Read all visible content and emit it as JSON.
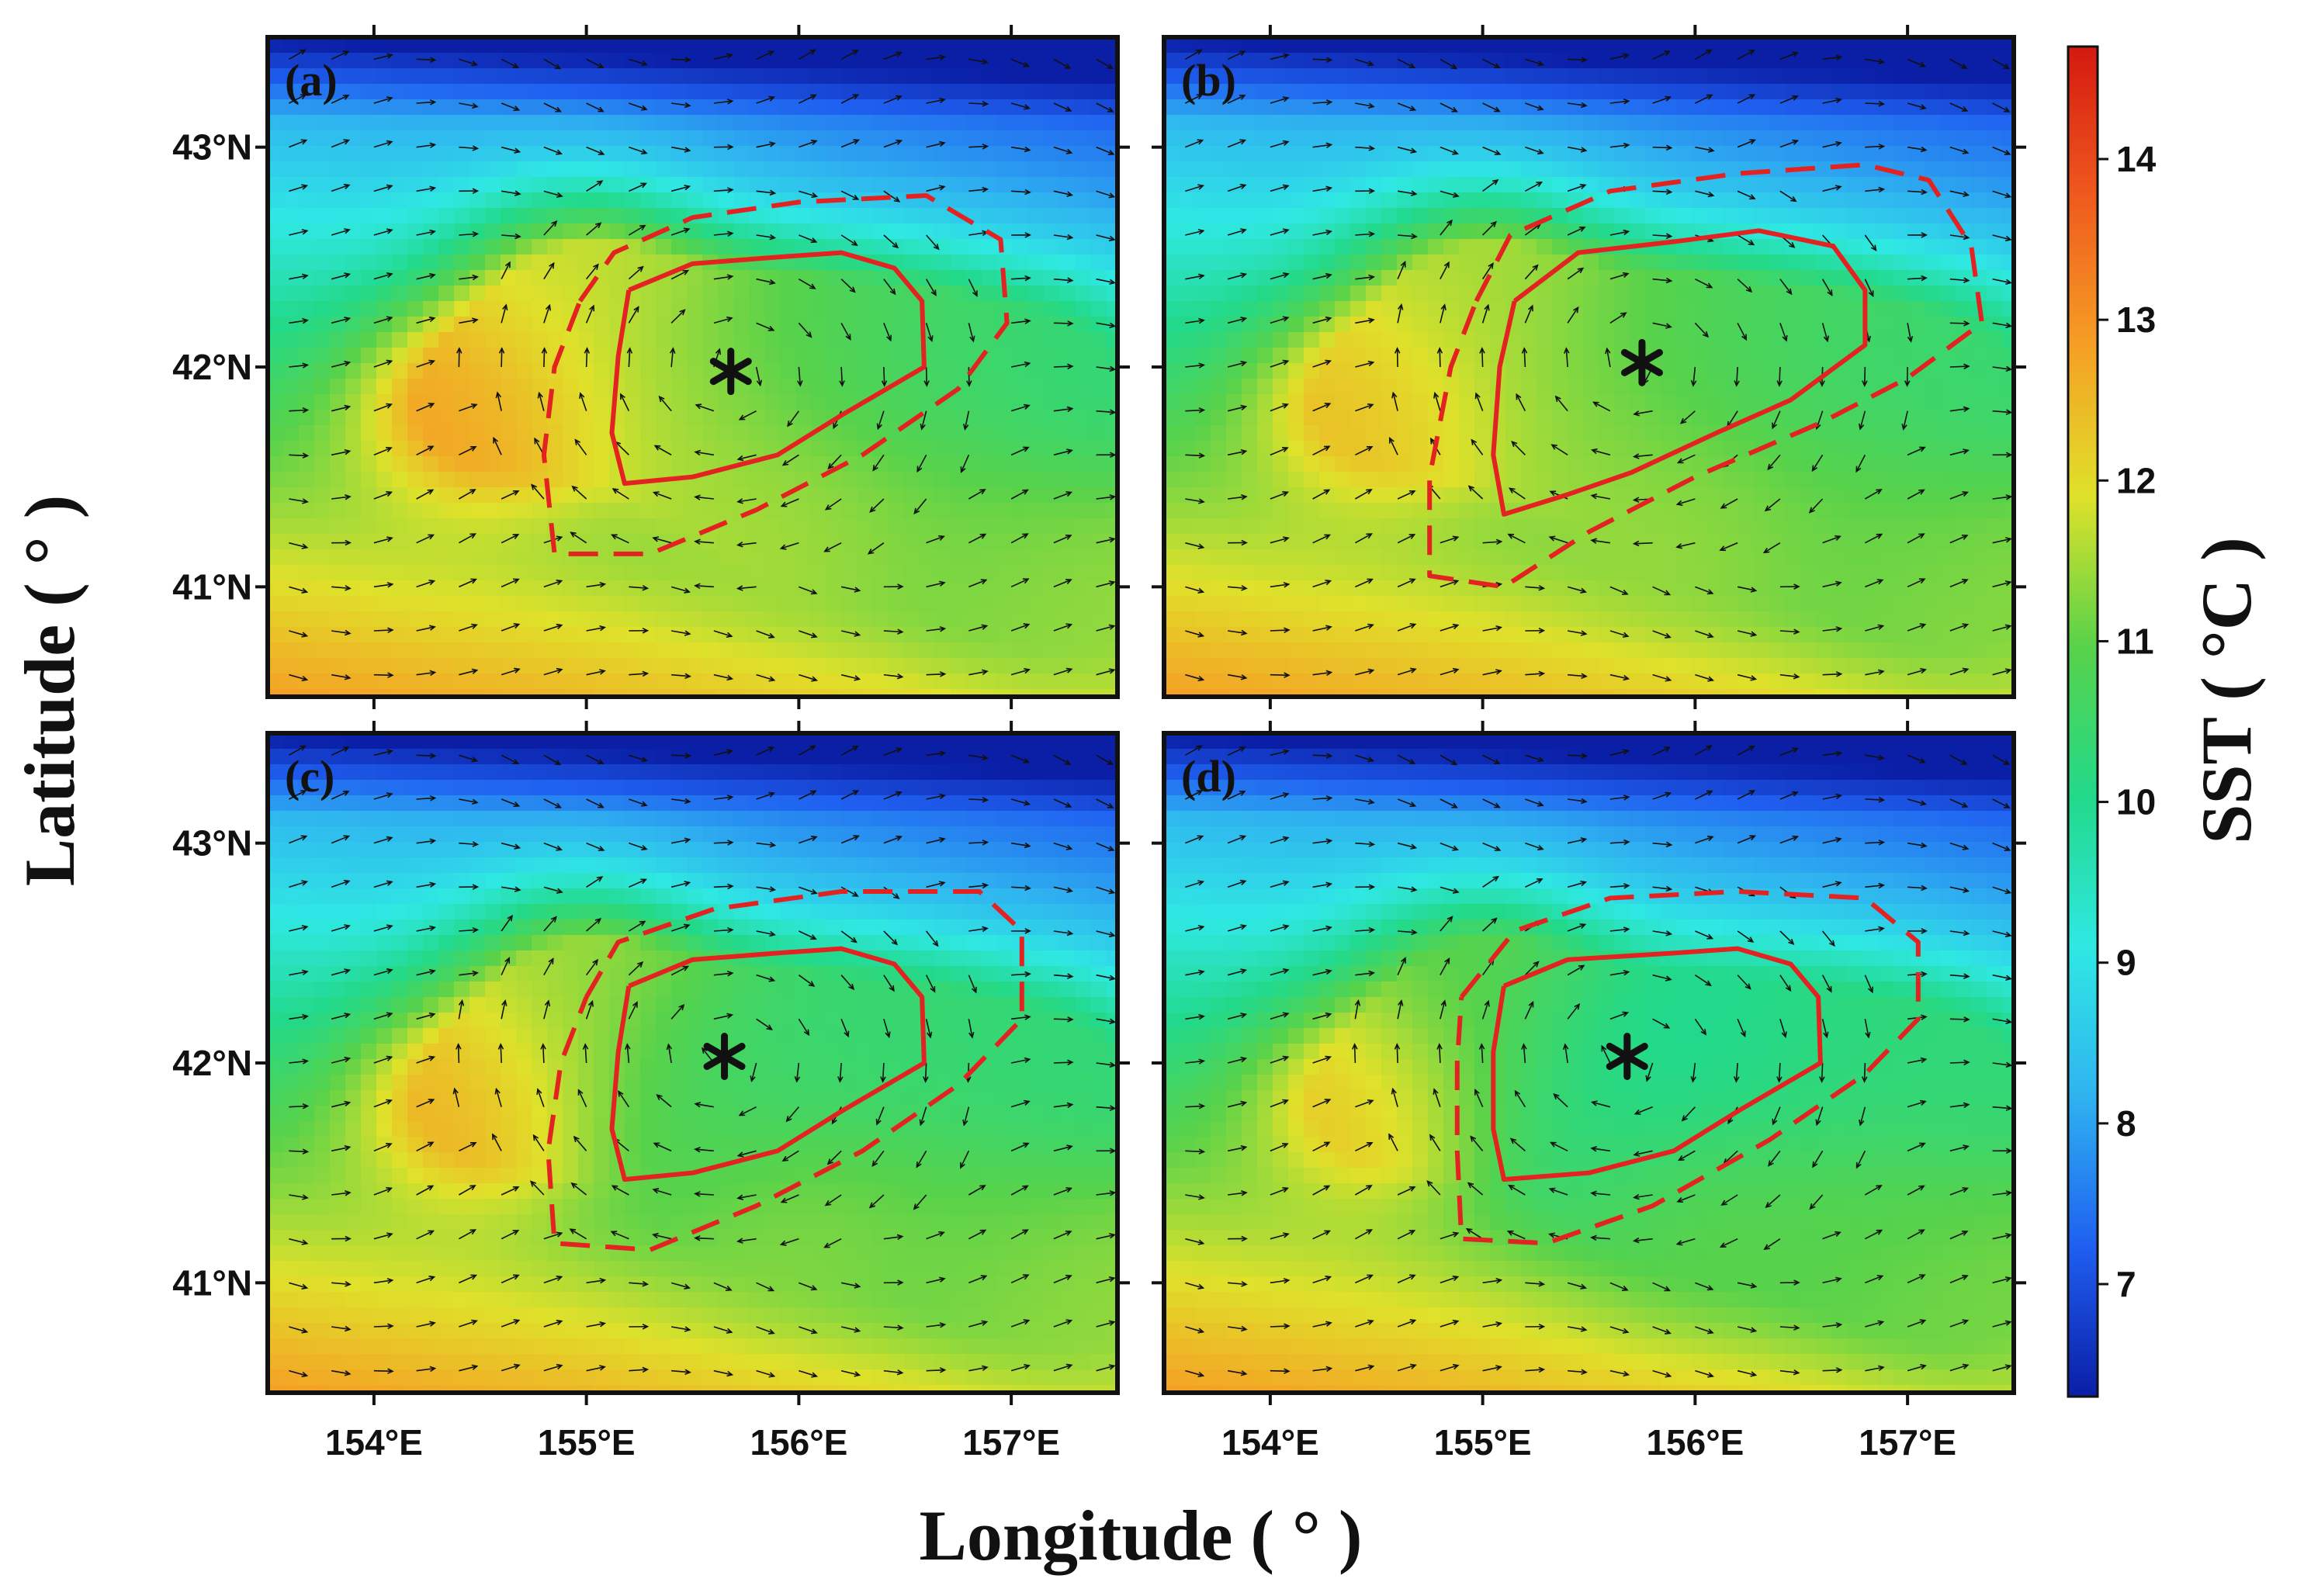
{
  "figure": {
    "xlabel": "Longitude ( ° )",
    "ylabel": "Latitude ( ° )",
    "colorbar_label": "SST ( °C )",
    "colorbar": {
      "min": 6.3,
      "max": 14.7,
      "ticks": [
        7,
        8,
        9,
        10,
        11,
        12,
        13,
        14
      ]
    },
    "x_ticks": [
      "154°E",
      "155°E",
      "156°E",
      "157°E"
    ],
    "y_ticks": [
      "43°N",
      "42°N",
      "41°N"
    ],
    "colors": {
      "contour": "#e32222",
      "colormap": [
        "#0a1ea6",
        "#1f5ff0",
        "#2fb3f0",
        "#2fe8e3",
        "#22d98a",
        "#58d24a",
        "#dfe12a",
        "#f5a024",
        "#ef5a1e",
        "#d4190f"
      ]
    }
  },
  "chart_data": {
    "type": "map",
    "xlim": [
      153.5,
      157.5
    ],
    "ylim": [
      40.5,
      43.5
    ],
    "panels": [
      {
        "label": "(a)",
        "center": [
          155.68,
          41.98
        ],
        "inner_contour": [
          [
            155.2,
            42.35
          ],
          [
            155.5,
            42.47
          ],
          [
            155.9,
            42.5
          ],
          [
            156.2,
            42.52
          ],
          [
            156.45,
            42.45
          ],
          [
            156.58,
            42.3
          ],
          [
            156.59,
            42.0
          ],
          [
            156.2,
            41.78
          ],
          [
            155.9,
            41.6
          ],
          [
            155.5,
            41.5
          ],
          [
            155.18,
            41.47
          ],
          [
            155.12,
            41.7
          ],
          [
            155.15,
            42.05
          ],
          [
            155.2,
            42.35
          ]
        ],
        "outer_contour": [
          [
            154.97,
            42.3
          ],
          [
            155.13,
            42.52
          ],
          [
            155.5,
            42.68
          ],
          [
            156.0,
            42.75
          ],
          [
            156.6,
            42.78
          ],
          [
            156.95,
            42.58
          ],
          [
            156.98,
            42.2
          ],
          [
            156.75,
            41.9
          ],
          [
            156.3,
            41.6
          ],
          [
            155.8,
            41.35
          ],
          [
            155.3,
            41.15
          ],
          [
            154.85,
            41.15
          ],
          [
            154.8,
            41.6
          ],
          [
            154.85,
            42.0
          ],
          [
            154.97,
            42.3
          ]
        ],
        "sst_anchors": [
          [
            154.5,
            41.8,
            12.8
          ],
          [
            155.4,
            41.75,
            11.6
          ],
          [
            155.85,
            42.05,
            10.9
          ],
          [
            155.0,
            42.3,
            11.7
          ],
          [
            156.5,
            42.0,
            10.6
          ],
          [
            157.2,
            41.9,
            10.3
          ],
          [
            156.0,
            41.3,
            11.5
          ],
          [
            156.8,
            41.25,
            11.1
          ],
          [
            157.3,
            41.0,
            11.4
          ]
        ]
      },
      {
        "label": "(b)",
        "center": [
          155.75,
          42.02
        ],
        "inner_contour": [
          [
            155.15,
            42.3
          ],
          [
            155.45,
            42.52
          ],
          [
            155.9,
            42.57
          ],
          [
            156.3,
            42.62
          ],
          [
            156.65,
            42.55
          ],
          [
            156.8,
            42.35
          ],
          [
            156.8,
            42.1
          ],
          [
            156.45,
            41.85
          ],
          [
            156.1,
            41.7
          ],
          [
            155.7,
            41.52
          ],
          [
            155.4,
            41.42
          ],
          [
            155.1,
            41.33
          ],
          [
            155.05,
            41.6
          ],
          [
            155.08,
            42.0
          ],
          [
            155.15,
            42.3
          ]
        ],
        "outer_contour": [
          [
            154.97,
            42.3
          ],
          [
            155.13,
            42.6
          ],
          [
            155.6,
            42.8
          ],
          [
            156.2,
            42.88
          ],
          [
            156.8,
            42.92
          ],
          [
            157.1,
            42.85
          ],
          [
            157.3,
            42.55
          ],
          [
            157.35,
            42.2
          ],
          [
            157.0,
            41.95
          ],
          [
            156.6,
            41.75
          ],
          [
            156.0,
            41.5
          ],
          [
            155.5,
            41.25
          ],
          [
            155.1,
            41.0
          ],
          [
            154.75,
            41.05
          ],
          [
            154.75,
            41.5
          ],
          [
            154.85,
            42.0
          ],
          [
            154.97,
            42.3
          ]
        ],
        "sst_anchors": [
          [
            154.5,
            41.8,
            12.4
          ],
          [
            155.4,
            41.75,
            11.4
          ],
          [
            155.85,
            42.05,
            10.8
          ],
          [
            155.0,
            42.3,
            11.5
          ],
          [
            156.5,
            42.0,
            10.6
          ],
          [
            157.2,
            41.9,
            10.4
          ],
          [
            156.0,
            41.3,
            11.4
          ],
          [
            156.8,
            41.25,
            11.0
          ],
          [
            157.3,
            41.0,
            11.3
          ]
        ]
      },
      {
        "label": "(c)",
        "center": [
          155.65,
          42.03
        ],
        "inner_contour": [
          [
            155.2,
            42.35
          ],
          [
            155.5,
            42.47
          ],
          [
            155.9,
            42.5
          ],
          [
            156.2,
            42.52
          ],
          [
            156.45,
            42.45
          ],
          [
            156.58,
            42.3
          ],
          [
            156.59,
            42.0
          ],
          [
            156.2,
            41.78
          ],
          [
            155.9,
            41.6
          ],
          [
            155.5,
            41.5
          ],
          [
            155.18,
            41.47
          ],
          [
            155.12,
            41.7
          ],
          [
            155.15,
            42.05
          ],
          [
            155.2,
            42.35
          ]
        ],
        "outer_contour": [
          [
            155.0,
            42.3
          ],
          [
            155.15,
            42.55
          ],
          [
            155.6,
            42.7
          ],
          [
            156.2,
            42.78
          ],
          [
            156.85,
            42.78
          ],
          [
            157.05,
            42.6
          ],
          [
            157.05,
            42.2
          ],
          [
            156.75,
            41.9
          ],
          [
            156.3,
            41.6
          ],
          [
            155.8,
            41.35
          ],
          [
            155.3,
            41.15
          ],
          [
            154.85,
            41.18
          ],
          [
            154.82,
            41.6
          ],
          [
            154.88,
            42.0
          ],
          [
            155.0,
            42.3
          ]
        ],
        "sst_anchors": [
          [
            154.5,
            41.8,
            12.6
          ],
          [
            155.4,
            41.75,
            10.7
          ],
          [
            155.85,
            42.05,
            10.4
          ],
          [
            155.0,
            42.3,
            11.4
          ],
          [
            156.5,
            42.0,
            10.4
          ],
          [
            157.2,
            41.9,
            10.3
          ],
          [
            156.0,
            41.3,
            11.3
          ],
          [
            156.8,
            41.25,
            11.0
          ],
          [
            157.3,
            41.0,
            11.4
          ]
        ]
      },
      {
        "label": "(d)",
        "center": [
          155.68,
          42.03
        ],
        "inner_contour": [
          [
            155.1,
            42.35
          ],
          [
            155.4,
            42.47
          ],
          [
            155.9,
            42.5
          ],
          [
            156.2,
            42.52
          ],
          [
            156.45,
            42.45
          ],
          [
            156.58,
            42.3
          ],
          [
            156.59,
            42.0
          ],
          [
            156.2,
            41.78
          ],
          [
            155.9,
            41.6
          ],
          [
            155.5,
            41.5
          ],
          [
            155.1,
            41.47
          ],
          [
            155.05,
            41.7
          ],
          [
            155.05,
            42.05
          ],
          [
            155.1,
            42.35
          ]
        ],
        "outer_contour": [
          [
            154.9,
            42.3
          ],
          [
            155.15,
            42.6
          ],
          [
            155.6,
            42.75
          ],
          [
            156.2,
            42.78
          ],
          [
            156.8,
            42.75
          ],
          [
            157.05,
            42.55
          ],
          [
            157.05,
            42.2
          ],
          [
            156.8,
            41.95
          ],
          [
            156.35,
            41.65
          ],
          [
            155.8,
            41.35
          ],
          [
            155.3,
            41.18
          ],
          [
            154.9,
            41.2
          ],
          [
            154.88,
            41.6
          ],
          [
            154.88,
            42.0
          ],
          [
            154.9,
            42.3
          ]
        ],
        "sst_anchors": [
          [
            154.5,
            41.8,
            12.3
          ],
          [
            155.4,
            41.75,
            10.2
          ],
          [
            155.85,
            42.05,
            9.8
          ],
          [
            155.0,
            42.3,
            10.9
          ],
          [
            156.5,
            42.0,
            10.2
          ],
          [
            157.2,
            41.9,
            10.3
          ],
          [
            156.0,
            41.3,
            11.0
          ],
          [
            156.8,
            41.25,
            10.9
          ],
          [
            157.3,
            41.0,
            11.2
          ]
        ]
      }
    ]
  }
}
